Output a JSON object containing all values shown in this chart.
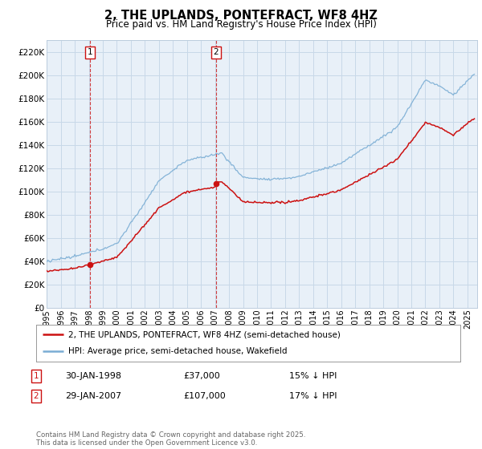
{
  "title": "2, THE UPLANDS, PONTEFRACT, WF8 4HZ",
  "subtitle": "Price paid vs. HM Land Registry's House Price Index (HPI)",
  "legend_line1": "2, THE UPLANDS, PONTEFRACT, WF8 4HZ (semi-detached house)",
  "legend_line2": "HPI: Average price, semi-detached house, Wakefield",
  "sale1_date": "30-JAN-1998",
  "sale1_price": "£37,000",
  "sale1_hpi": "15% ↓ HPI",
  "sale1_year": 1998.08,
  "sale1_value": 37000,
  "sale2_date": "29-JAN-2007",
  "sale2_price": "£107,000",
  "sale2_hpi": "17% ↓ HPI",
  "sale2_year": 2007.08,
  "sale2_value": 107000,
  "copyright": "Contains HM Land Registry data © Crown copyright and database right 2025.\nThis data is licensed under the Open Government Licence v3.0.",
  "hpi_color": "#7aadd4",
  "price_color": "#cc1111",
  "vline_color": "#cc1111",
  "background_color": "#ffffff",
  "chart_bg": "#e8f0f8",
  "grid_color": "#c8d8e8",
  "ylim": [
    0,
    230000
  ],
  "yticks": [
    0,
    20000,
    40000,
    60000,
    80000,
    100000,
    120000,
    140000,
    160000,
    180000,
    200000,
    220000
  ],
  "xlim_start": 1995.0,
  "xlim_end": 2025.7
}
